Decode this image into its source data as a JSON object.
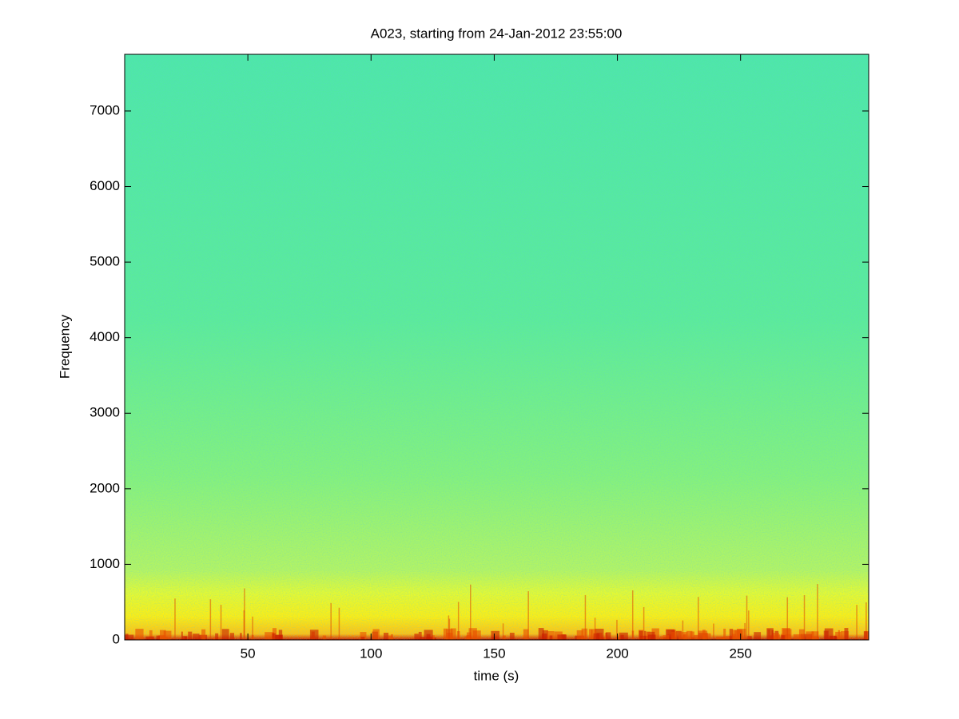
{
  "chart_data": {
    "type": "spectrogram",
    "title": "A023, starting from 24-Jan-2012 23:55:00",
    "x_label": "time (s)",
    "y_label": "Frequency",
    "xlim": [
      0,
      302
    ],
    "ylim": [
      0,
      7750
    ],
    "xticks": [
      50,
      100,
      150,
      200,
      250
    ],
    "yticks": [
      0,
      1000,
      2000,
      3000,
      4000,
      5000,
      6000,
      7000
    ]
  }
}
